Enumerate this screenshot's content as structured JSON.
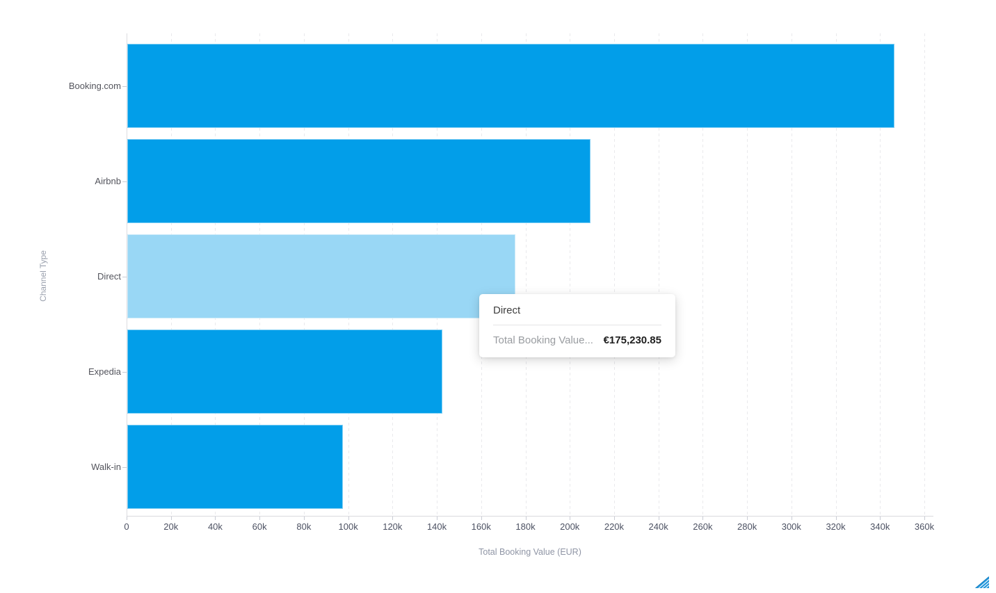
{
  "chart_data": {
    "type": "bar",
    "orientation": "horizontal",
    "categories": [
      "Booking.com",
      "Airbnb",
      "Direct",
      "Expedia",
      "Walk-in"
    ],
    "values": [
      346200,
      209000,
      175230.85,
      142200,
      97200
    ],
    "highlighted_index": 2,
    "title": "",
    "xlabel": "Total Booking Value (EUR)",
    "ylabel": "Channel Type",
    "xlim": [
      0,
      360000
    ],
    "tick_step": 20000,
    "tick_labels": [
      "0",
      "20k",
      "40k",
      "60k",
      "80k",
      "100k",
      "120k",
      "140k",
      "160k",
      "180k",
      "200k",
      "220k",
      "240k",
      "260k",
      "280k",
      "300k",
      "320k",
      "340k",
      "360k"
    ],
    "grid": "vertical-dashed",
    "legend": "none"
  },
  "tooltip": {
    "title": "Direct",
    "label": "Total Booking Value...",
    "value": "€175,230.85"
  },
  "colors": {
    "bar": "#029ee9",
    "bar_highlight": "#99d7f5",
    "grid": "#e9e9ec",
    "axis_line": "#d9d9dd",
    "tick_text": "#4c5162",
    "category_text": "#53545c",
    "axis_title_text": "#8f95a5",
    "watermark_blue": "#2396db"
  },
  "icons": {
    "watermark": "striped-triangle-icon"
  }
}
